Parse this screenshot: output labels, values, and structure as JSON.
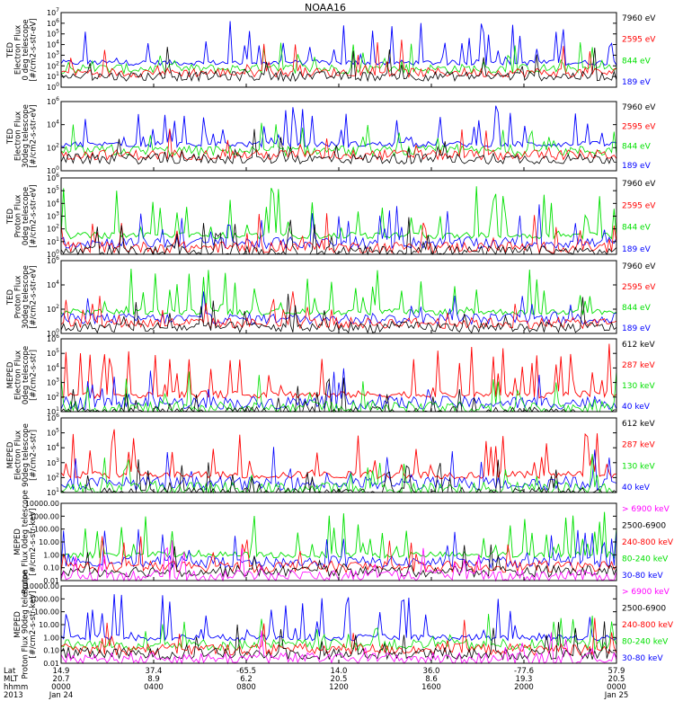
{
  "figure": {
    "title": "NOAA16"
  },
  "colors": {
    "black": "#000000",
    "red": "#ff0000",
    "green": "#00e000",
    "blue": "#0000ff",
    "magenta": "#ff00ff"
  },
  "chart_data": [
    {
      "type": "line",
      "title": "",
      "ylabel": [
        "TED",
        "Electron Flux",
        "0 deg telescope",
        "[#/cm2-s-str-eV]"
      ],
      "y_scale": "log",
      "ylim": [
        1,
        10000000
      ],
      "y_tick_labels": [
        "10^0",
        "10^1",
        "10^2",
        "10^3",
        "10^4",
        "10^5",
        "10^6",
        "10^7"
      ],
      "baseline": 200,
      "mainColor": "blue",
      "series": [
        {
          "name": "7960 eV",
          "color": "black"
        },
        {
          "name": "2595 eV",
          "color": "red"
        },
        {
          "name": "844 eV",
          "color": "green"
        },
        {
          "name": "189 eV",
          "color": "blue"
        }
      ]
    },
    {
      "type": "line",
      "title": "",
      "ylabel": [
        "TED",
        "Electron Flux",
        "30deg telescope",
        "[#/cm2-s-str-eV]"
      ],
      "y_scale": "log",
      "ylim": [
        1,
        1000000
      ],
      "y_tick_labels": [
        "10^0",
        "10^2",
        "10^4",
        "10^6"
      ],
      "baseline": 200,
      "mainColor": "blue",
      "series": [
        {
          "name": "7960 eV",
          "color": "black"
        },
        {
          "name": "2595 eV",
          "color": "red"
        },
        {
          "name": "844 eV",
          "color": "green"
        },
        {
          "name": "189 eV",
          "color": "blue"
        }
      ]
    },
    {
      "type": "line",
      "title": "",
      "ylabel": [
        "TED",
        "Proton Flux",
        "0deg telescope",
        "[#/cm2-s-str-eV]"
      ],
      "y_scale": "log",
      "ylim": [
        1,
        1000000
      ],
      "y_tick_labels": [
        "10^0",
        "10^1",
        "10^2",
        "10^3",
        "10^4",
        "10^5",
        "10^6"
      ],
      "baseline": 30,
      "mainColor": "green",
      "series": [
        {
          "name": "7960 eV",
          "color": "black"
        },
        {
          "name": "2595 eV",
          "color": "red"
        },
        {
          "name": "844 eV",
          "color": "green"
        },
        {
          "name": "189 eV",
          "color": "blue"
        }
      ]
    },
    {
      "type": "line",
      "title": "",
      "ylabel": [
        "TED",
        "Proton Flux",
        "30deg telescope",
        "[#/cm2-s-str-eV]"
      ],
      "y_scale": "log",
      "ylim": [
        1,
        1000000
      ],
      "y_tick_labels": [
        "10^0",
        "10^2",
        "10^4",
        "10^6"
      ],
      "baseline": 60,
      "mainColor": "green",
      "series": [
        {
          "name": "7960 eV",
          "color": "black"
        },
        {
          "name": "2595 eV",
          "color": "red"
        },
        {
          "name": "844 eV",
          "color": "green"
        },
        {
          "name": "189 eV",
          "color": "blue"
        }
      ]
    },
    {
      "type": "line",
      "title": "",
      "ylabel": [
        "MEPED",
        "Electron Flux",
        "0deg telescope",
        "[#/cm2-s-str]"
      ],
      "y_scale": "log",
      "ylim": [
        10,
        1000000
      ],
      "y_tick_labels": [
        "10^1",
        "10^2",
        "10^3",
        "10^4",
        "10^5",
        "10^6"
      ],
      "baseline": 150,
      "mainColor": "red",
      "series": [
        {
          "name": "612 keV",
          "color": "black"
        },
        {
          "name": "287 keV",
          "color": "red"
        },
        {
          "name": "130 keV",
          "color": "green"
        },
        {
          "name": "40 keV",
          "color": "blue"
        }
      ]
    },
    {
      "type": "line",
      "title": "",
      "ylabel": [
        "MEPED",
        "Electron Flux",
        "90deg telescope",
        "[#/cm2-s-str]"
      ],
      "y_scale": "log",
      "ylim": [
        10,
        1000000
      ],
      "y_tick_labels": [
        "10^1",
        "10^2",
        "10^3",
        "10^4",
        "10^5",
        "10^6"
      ],
      "baseline": 150,
      "mainColor": "red",
      "series": [
        {
          "name": "612 keV",
          "color": "black"
        },
        {
          "name": "287 keV",
          "color": "red"
        },
        {
          "name": "130 keV",
          "color": "green"
        },
        {
          "name": "40 keV",
          "color": "blue"
        }
      ]
    },
    {
      "type": "line",
      "title": "",
      "ylabel": [
        "MEPED",
        "Proton Flux 0deg telescope",
        "[#/cm2-s-str-keV]"
      ],
      "y_scale": "log",
      "ylim": [
        0.01,
        10000
      ],
      "y_tick_labels": [
        "0.01",
        "0.10",
        "1.00",
        "10.00",
        "100.00",
        "1000.00",
        "10000.00"
      ],
      "baseline": 1,
      "mainColor": "green",
      "series": [
        {
          "name": "> 6900 keV",
          "color": "magenta"
        },
        {
          "name": "2500-6900",
          "color": "black"
        },
        {
          "name": "240-800 keV",
          "color": "red"
        },
        {
          "name": "80-240 keV",
          "color": "green"
        },
        {
          "name": "30-80 keV",
          "color": "blue"
        }
      ]
    },
    {
      "type": "line",
      "title": "",
      "ylabel": [
        "MEPED",
        "Proton Flux 90deg telescope",
        "[#/cm2-s-str-keV]"
      ],
      "y_scale": "log",
      "ylim": [
        0.01,
        10000
      ],
      "y_tick_labels": [
        "0.01",
        "0.10",
        "1.00",
        "10.00",
        "100.00",
        "1000.00",
        "10000.00"
      ],
      "baseline": 1,
      "mainColor": "blue",
      "series": [
        {
          "name": "> 6900 keV",
          "color": "magenta"
        },
        {
          "name": "2500-6900",
          "color": "black"
        },
        {
          "name": "240-800 keV",
          "color": "red"
        },
        {
          "name": "80-240 keV",
          "color": "green"
        },
        {
          "name": "30-80 keV",
          "color": "blue"
        }
      ]
    }
  ],
  "x_axis": {
    "row_labels": [
      "Lat",
      "MLT",
      "hhmm",
      "2013"
    ],
    "ticks": [
      {
        "lat": "14.9",
        "mlt": "20.7",
        "hhmm": "0000",
        "date": "Jan 24"
      },
      {
        "lat": "37.4",
        "mlt": "8.9",
        "hhmm": "0400",
        "date": ""
      },
      {
        "lat": "-65.5",
        "mlt": "6.2",
        "hhmm": "0800",
        "date": ""
      },
      {
        "lat": "14.0",
        "mlt": "20.5",
        "hhmm": "1200",
        "date": ""
      },
      {
        "lat": "36.0",
        "mlt": "8.6",
        "hhmm": "1600",
        "date": ""
      },
      {
        "lat": "-77.6",
        "mlt": "19.3",
        "hhmm": "2000",
        "date": ""
      },
      {
        "lat": "57.9",
        "mlt": "20.5",
        "hhmm": "0000",
        "date": "Jan 25"
      }
    ]
  }
}
